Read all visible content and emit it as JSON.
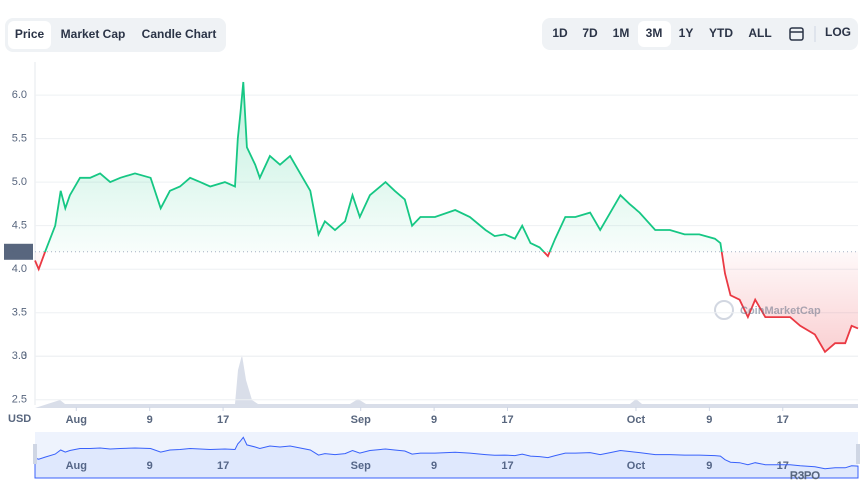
{
  "tabs": [
    {
      "label": "Price",
      "active": true
    },
    {
      "label": "Market Cap",
      "active": false
    },
    {
      "label": "Candle Chart",
      "active": false
    }
  ],
  "ranges": [
    {
      "label": "1D",
      "active": false
    },
    {
      "label": "7D",
      "active": false
    },
    {
      "label": "1M",
      "active": false
    },
    {
      "label": "3M",
      "active": true
    },
    {
      "label": "1Y",
      "active": false
    },
    {
      "label": "YTD",
      "active": false
    },
    {
      "label": "ALL",
      "active": false
    }
  ],
  "scale_toggle": "LOG",
  "chart_data": {
    "type": "line",
    "currency": "USD",
    "watermark": "CoinMarketCap",
    "badge": "R3PO",
    "baseline": 4.2,
    "color_up": "#16c784",
    "color_down": "#ea3943",
    "navigator_color": "#3861fb",
    "x": [
      -4.5,
      -4.1,
      -3.4,
      -2.3,
      -1.7,
      -1.2,
      -0.7,
      0.4,
      1.5,
      2.6,
      3.7,
      4.8,
      6.4,
      8.1,
      9.2,
      10.2,
      11.3,
      12.4,
      13.5,
      14.6,
      16.2,
      17.3,
      17.6,
      17.9,
      18.2,
      18.6,
      19.5,
      20.0,
      21.1,
      22.2,
      23.3,
      24.4,
      25.5,
      26.4,
      27.1,
      28.2,
      29.3,
      30.1,
      30.9,
      32.0,
      33.7,
      34.7,
      35.8,
      36.6,
      37.5,
      39.1,
      41.3,
      42.9,
      44.6,
      45.6,
      46.7,
      47.8,
      48.6,
      49.5,
      50.5,
      51.4,
      52.2,
      53.3,
      54.4,
      56.0,
      57.1,
      58.2,
      59.3,
      60.3,
      61.4,
      63.1,
      64.7,
      66.3,
      67.9,
      69.6,
      70.2,
      70.7,
      71.3,
      72.3,
      73.2,
      74.0,
      75.1,
      76.7,
      77.8,
      78.9,
      80.5,
      81.6,
      82.7,
      83.8,
      84.5,
      85.2
    ],
    "values": [
      4.1,
      4.0,
      4.2,
      4.5,
      4.9,
      4.7,
      4.85,
      5.05,
      5.05,
      5.1,
      5.0,
      5.05,
      5.1,
      5.05,
      4.7,
      4.9,
      4.95,
      5.05,
      5.0,
      4.95,
      5.0,
      4.95,
      5.5,
      5.8,
      6.15,
      5.4,
      5.2,
      5.05,
      5.3,
      5.2,
      5.3,
      5.1,
      4.9,
      4.4,
      4.55,
      4.45,
      4.55,
      4.85,
      4.6,
      4.85,
      5.0,
      4.9,
      4.8,
      4.5,
      4.6,
      4.6,
      4.68,
      4.6,
      4.45,
      4.38,
      4.4,
      4.35,
      4.5,
      4.3,
      4.25,
      4.15,
      4.35,
      4.6,
      4.6,
      4.65,
      4.45,
      4.65,
      4.85,
      4.75,
      4.65,
      4.45,
      4.45,
      4.4,
      4.4,
      4.35,
      4.3,
      3.95,
      3.7,
      3.65,
      3.45,
      3.65,
      3.45,
      3.45,
      3.45,
      3.35,
      3.25,
      3.05,
      3.15,
      3.15,
      3.35,
      3.32
    ],
    "xlim": [
      -4.5,
      85.2
    ],
    "xticks": [
      {
        "value": 0,
        "label": "Aug"
      },
      {
        "value": 8,
        "label": "9"
      },
      {
        "value": 16,
        "label": "17"
      },
      {
        "value": 31,
        "label": "Sep"
      },
      {
        "value": 39,
        "label": "9"
      },
      {
        "value": 47,
        "label": "17"
      },
      {
        "value": 61,
        "label": "Oct"
      },
      {
        "value": 69,
        "label": "9"
      },
      {
        "value": 77,
        "label": "17"
      }
    ],
    "ylim": [
      2.44,
      6.38
    ],
    "yticks": [
      2.5,
      3.0,
      {
        "value": 3,
        "label": "3.0"
      },
      3.5,
      {
        "value": 4,
        "label": "4.0"
      },
      4.5,
      {
        "value": 5,
        "label": "5.0"
      },
      5.5,
      {
        "value": 6,
        "label": "6.0"
      }
    ],
    "grid": true
  }
}
